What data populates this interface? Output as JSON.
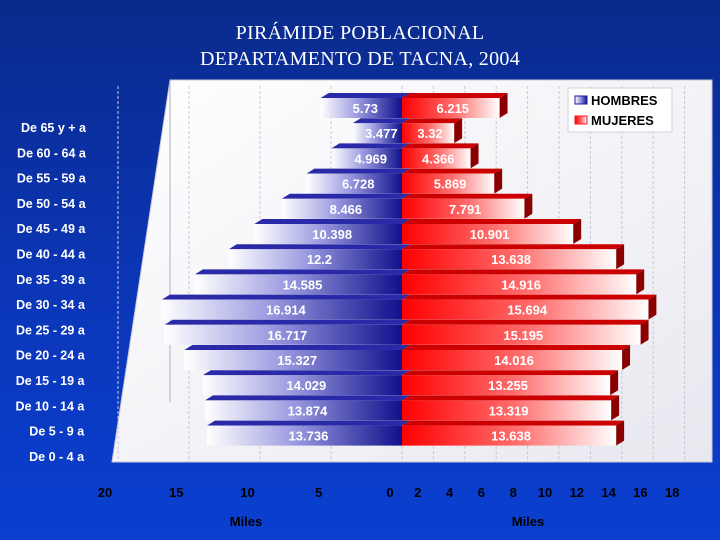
{
  "title_line1": "PIRÁMIDE POBLACIONAL",
  "title_line2": "DEPARTAMENTO DE TACNA, 2004",
  "chart_data": {
    "type": "bar",
    "orientation": "horizontal",
    "categories": [
      "De 65 y + a",
      "De 60 - 64 a",
      "De 55 - 59 a",
      "De 50 - 54 a",
      "De 45 - 49 a",
      "De 40 - 44 a",
      "De 35 - 39 a",
      "De 30 - 34 a",
      "De 25 - 29 a",
      "De 20 - 24 a",
      "De 15 - 19 a",
      "De 10 - 14 a",
      "De 5 - 9 a",
      "De 0 - 4 a"
    ],
    "series": [
      {
        "name": "HOMBRES",
        "color": "#1a1a9c",
        "values": [
          5.73,
          3.477,
          4.969,
          6.728,
          8.466,
          10.398,
          12.2,
          14.585,
          16.914,
          16.717,
          15.327,
          14.029,
          13.874,
          13.736
        ]
      },
      {
        "name": "MUJERES",
        "color": "#ff1a1a",
        "values": [
          6.215,
          3.32,
          4.366,
          5.869,
          7.791,
          10.901,
          13.638,
          14.916,
          15.694,
          15.195,
          14.016,
          13.255,
          13.319,
          13.638
        ]
      }
    ],
    "x_ticks_left": [
      "20",
      "15",
      "10",
      "5",
      "0"
    ],
    "x_ticks_right": [
      "2",
      "4",
      "6",
      "8",
      "10",
      "12",
      "14",
      "16",
      "18"
    ],
    "xlim_left": [
      0,
      20
    ],
    "xlim_right": [
      0,
      18
    ],
    "xlabel_left": "Miles",
    "xlabel_right": "Miles",
    "legend_position": "top-right",
    "grid": true
  }
}
